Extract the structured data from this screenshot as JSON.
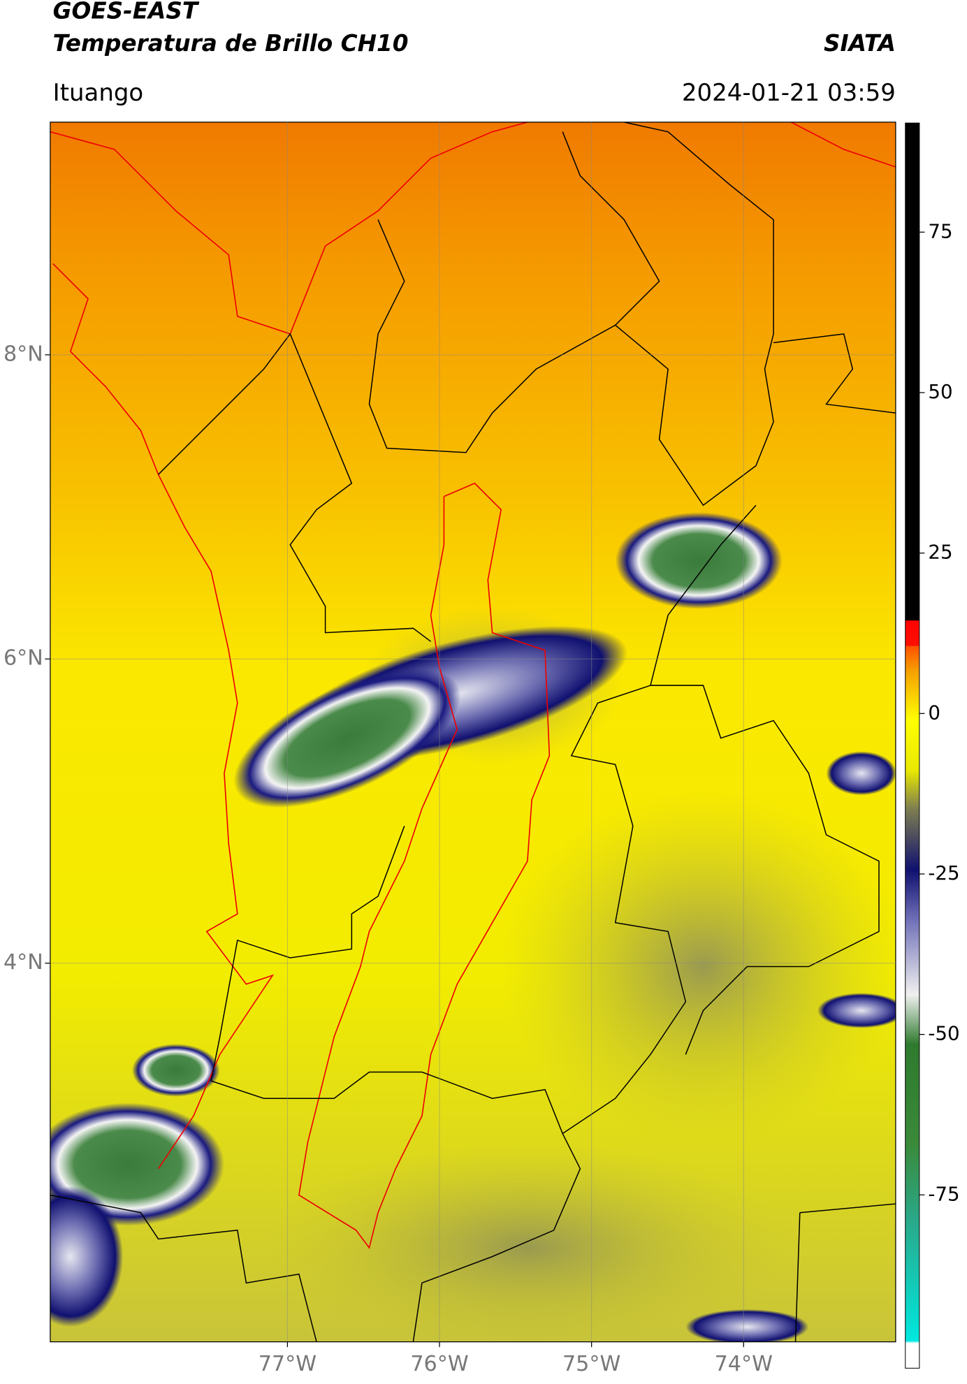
{
  "header": {
    "satellite": "GOES-EAST",
    "product": "Temperatura de Brillo CH10",
    "agency": "SIATA",
    "location": "Ituango",
    "datetime": "2024-01-21 03:59"
  },
  "map": {
    "xlim": [
      -78.56,
      -73
    ],
    "ylim": [
      1.51,
      9.53
    ],
    "xticks": [
      {
        "value": -77,
        "label": "77°W"
      },
      {
        "value": -76,
        "label": "76°W"
      },
      {
        "value": -75,
        "label": "75°W"
      },
      {
        "value": -74,
        "label": "74°W"
      }
    ],
    "yticks": [
      {
        "value": 8,
        "label": "8°N"
      },
      {
        "value": 6,
        "label": "6°N"
      },
      {
        "value": 4,
        "label": "4°N"
      }
    ],
    "grid": true
  },
  "colorbar": {
    "lim": [
      -102,
      92
    ],
    "ticks": [
      75,
      50,
      25,
      0,
      -25,
      -50,
      -75
    ]
  }
}
